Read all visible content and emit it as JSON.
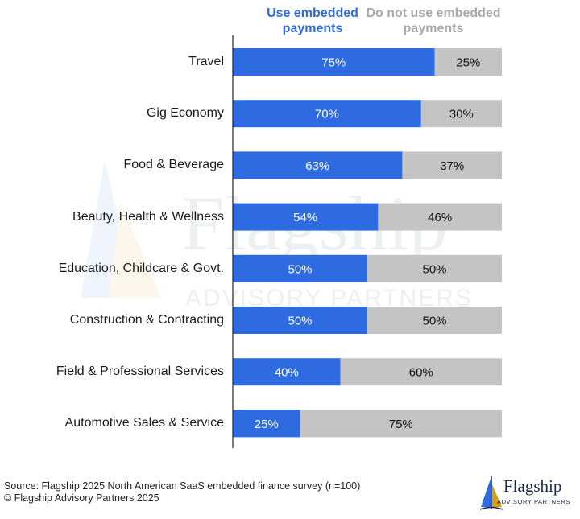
{
  "colors": {
    "use": "#2e6be0",
    "not_use": "#c4c4c4",
    "use_text": "#ffffff",
    "not_use_text": "#111111",
    "legend_use": "#2e6be0",
    "legend_not": "#a9a9a9"
  },
  "legend": {
    "use": "Use embedded payments",
    "not_use": "Do not use embedded payments"
  },
  "chart_data": {
    "type": "bar",
    "orientation": "horizontal",
    "stacked": true,
    "categories": [
      "Travel",
      "Gig Economy",
      "Food & Beverage",
      "Beauty, Health & Wellness",
      "Education, Childcare & Govt.",
      "Construction & Contracting",
      "Field & Professional Services",
      "Automotive Sales & Service"
    ],
    "series": [
      {
        "name": "Use embedded payments",
        "values": [
          75,
          70,
          63,
          54,
          50,
          50,
          40,
          25
        ]
      },
      {
        "name": "Do not use embedded payments",
        "values": [
          25,
          30,
          37,
          46,
          50,
          50,
          60,
          75
        ]
      }
    ],
    "value_suffix": "%",
    "xlim": [
      0,
      100
    ],
    "legend_position": "top",
    "grid": false
  },
  "footer": {
    "source": "Source: Flagship 2025 North American SaaS embedded finance survey (n=100)",
    "copyright": "© Flagship Advisory Partners 2025"
  },
  "logo": {
    "name": "Flagship",
    "subtitle": "ADVISORY PARTNERS",
    "icon": "sail-logo-icon"
  }
}
